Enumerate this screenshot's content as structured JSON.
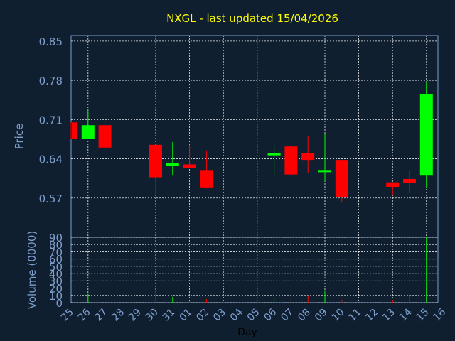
{
  "colors": {
    "background": "#0f1f2f",
    "title": "#ffff00",
    "axis_text": "#7f9fcf",
    "xlabel_text": "#000000",
    "up": "#00ff00",
    "down": "#ff0000",
    "grid": "#ffffff",
    "frame": "#7f9fcf"
  },
  "chart_data": {
    "type": "candlestick",
    "title": "NXGL - last updated 15/04/2026",
    "xlabel": "Day",
    "ylabel": "Price",
    "volume_label": "Volume (0000)",
    "price_ylim": [
      0.5,
      0.86
    ],
    "volume_ylim": [
      0,
      90
    ],
    "price_ticks": [
      "0.85",
      "0.78",
      "0.71",
      "0.64",
      "0.57"
    ],
    "price_tick_values": [
      0.85,
      0.78,
      0.71,
      0.64,
      0.57
    ],
    "volume_ticks": [
      "90",
      "80",
      "70",
      "60",
      "50",
      "40",
      "30",
      "20",
      "10",
      "0"
    ],
    "volume_tick_values": [
      90,
      80,
      70,
      60,
      50,
      40,
      30,
      20,
      10,
      0
    ],
    "days": [
      "25",
      "26",
      "27",
      "28",
      "29",
      "30",
      "31",
      "01",
      "02",
      "03",
      "04",
      "05",
      "06",
      "07",
      "08",
      "09",
      "10",
      "11",
      "12",
      "13",
      "14",
      "15",
      "16"
    ],
    "candles": [
      {
        "day": "25",
        "open": 0.705,
        "close": 0.675,
        "high": 0.705,
        "low": 0.675,
        "volume": 0
      },
      {
        "day": "26",
        "open": 0.675,
        "close": 0.7,
        "high": 0.728,
        "low": 0.675,
        "volume": 12
      },
      {
        "day": "27",
        "open": 0.7,
        "close": 0.66,
        "high": 0.722,
        "low": 0.66,
        "volume": 2
      },
      {
        "day": "30",
        "open": 0.665,
        "close": 0.607,
        "high": 0.665,
        "low": 0.577,
        "volume": 15
      },
      {
        "day": "31",
        "open": 0.628,
        "close": 0.632,
        "high": 0.67,
        "low": 0.61,
        "volume": 8
      },
      {
        "day": "01",
        "open": 0.63,
        "close": 0.624,
        "high": 0.665,
        "low": 0.624,
        "volume": 3
      },
      {
        "day": "02",
        "open": 0.62,
        "close": 0.589,
        "high": 0.655,
        "low": 0.587,
        "volume": 5
      },
      {
        "day": "06",
        "open": 0.648,
        "close": 0.65,
        "high": 0.664,
        "low": 0.611,
        "volume": 6
      },
      {
        "day": "07",
        "open": 0.662,
        "close": 0.612,
        "high": 0.662,
        "low": 0.612,
        "volume": 5
      },
      {
        "day": "08",
        "open": 0.65,
        "close": 0.638,
        "high": 0.68,
        "low": 0.615,
        "volume": 10
      },
      {
        "day": "09",
        "open": 0.618,
        "close": 0.62,
        "high": 0.685,
        "low": 0.6,
        "volume": 17
      },
      {
        "day": "10",
        "open": 0.638,
        "close": 0.572,
        "high": 0.638,
        "low": 0.562,
        "volume": 4
      },
      {
        "day": "13",
        "open": 0.598,
        "close": 0.59,
        "high": 0.598,
        "low": 0.576,
        "volume": 4
      },
      {
        "day": "14",
        "open": 0.604,
        "close": 0.597,
        "high": 0.62,
        "low": 0.58,
        "volume": 11
      },
      {
        "day": "15",
        "open": 0.61,
        "close": 0.755,
        "high": 0.778,
        "low": 0.589,
        "volume": 90
      }
    ]
  }
}
